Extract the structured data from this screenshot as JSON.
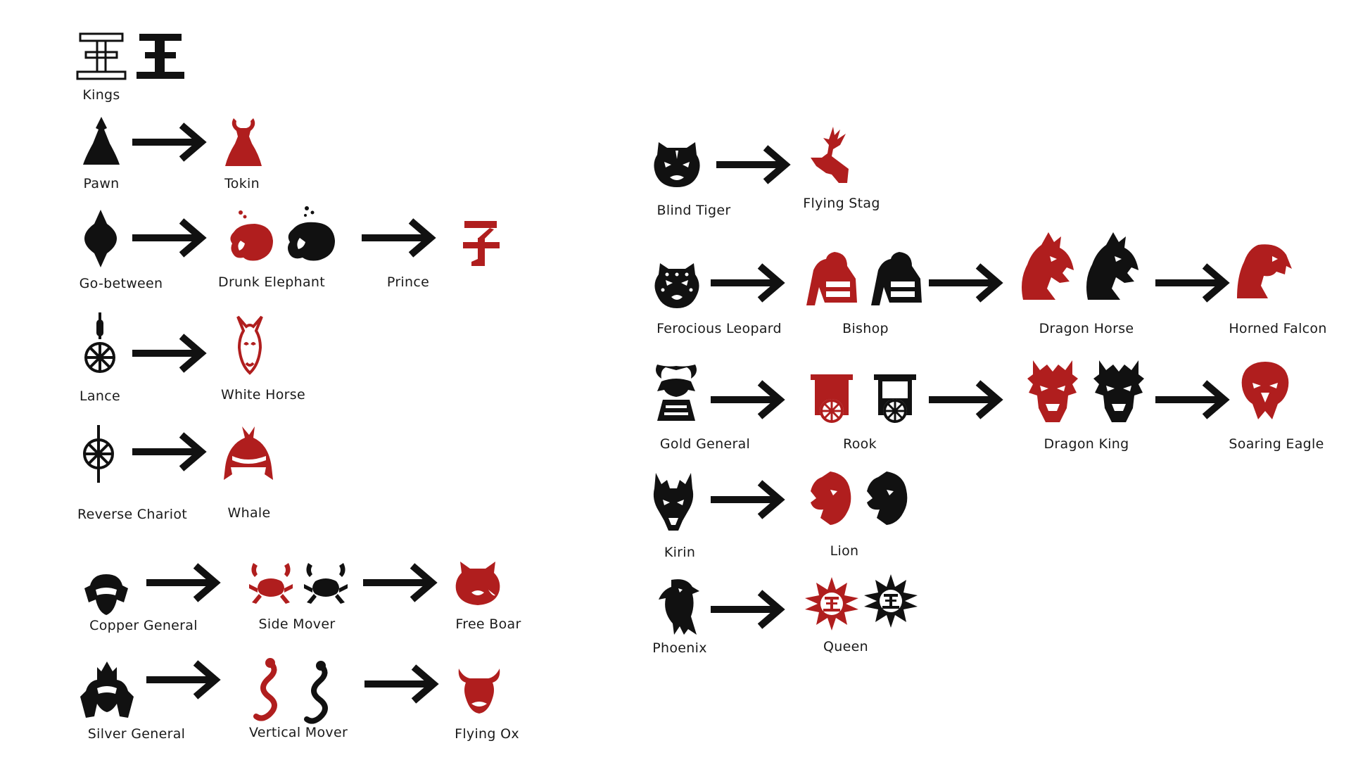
{
  "colors": {
    "black": "#111111",
    "red": "#b01e1e",
    "text": "#1a1a1a"
  },
  "labels": {
    "kings": "Kings",
    "pawn": "Pawn",
    "tokin": "Tokin",
    "go_between": "Go-between",
    "drunk_elephant": "Drunk Elephant",
    "prince": "Prince",
    "lance": "Lance",
    "white_horse": "White Horse",
    "reverse_chariot": "Reverse Chariot",
    "whale": "Whale",
    "copper_general": "Copper General",
    "side_mover": "Side Mover",
    "free_boar": "Free Boar",
    "silver_general": "Silver General",
    "vertical_mover": "Vertical Mover",
    "flying_ox": "Flying Ox",
    "blind_tiger": "Blind Tiger",
    "flying_stag": "Flying Stag",
    "ferocious_leopard": "Ferocious Leopard",
    "bishop": "Bishop",
    "dragon_horse": "Dragon Horse",
    "horned_falcon": "Horned Falcon",
    "gold_general": "Gold General",
    "rook": "Rook",
    "dragon_king": "Dragon King",
    "soaring_eagle": "Soaring Eagle",
    "kirin": "Kirin",
    "lion": "Lion",
    "phoenix": "Phoenix",
    "queen": "Queen"
  },
  "icons": [
    "king-outline-icon",
    "king-solid-icon",
    "pawn-icon",
    "tokin-icon",
    "go-between-icon",
    "drunk-elephant-icon",
    "prince-icon",
    "lance-icon",
    "white-horse-icon",
    "reverse-chariot-icon",
    "whale-icon",
    "copper-general-icon",
    "crab-icon",
    "boar-icon",
    "silver-general-icon",
    "serpent-icon",
    "ox-icon",
    "tiger-icon",
    "stag-icon",
    "leopard-icon",
    "bishop-icon",
    "dragon-horse-icon",
    "falcon-icon",
    "gold-general-icon",
    "rook-icon",
    "dragon-king-icon",
    "eagle-icon",
    "kirin-icon",
    "lion-icon",
    "phoenix-icon",
    "queen-icon",
    "arrow-icon"
  ]
}
